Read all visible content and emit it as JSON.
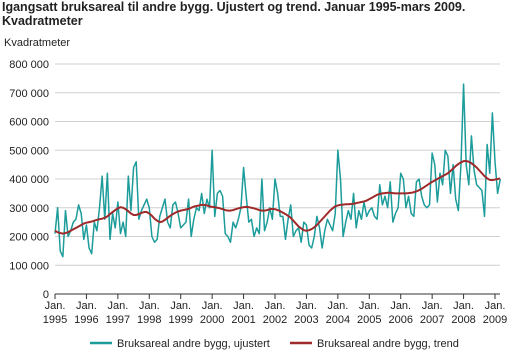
{
  "chart_data": {
    "type": "line",
    "title": "Igangsatt bruksareal til andre bygg. Ujustert og trend. Januar 1995-mars 2009. Kvadratmeter",
    "y_label": "Kvadratmeter",
    "grid": true,
    "ylim": [
      0,
      800000
    ],
    "yticks": [
      0,
      {
        "value": 100000,
        "label": "100 000"
      },
      {
        "value": 200000,
        "label": "200 000"
      },
      {
        "value": 300000,
        "label": "300 000"
      },
      {
        "value": 400000,
        "label": "400 000"
      },
      {
        "value": 500000,
        "label": "500 000"
      },
      {
        "value": 600000,
        "label": "600 000"
      },
      {
        "value": 700000,
        "label": "700 000"
      },
      {
        "value": 800000,
        "label": "800 000"
      }
    ],
    "legend": "bottom",
    "categories": [
      "Jan. 1995",
      null,
      null,
      null,
      null,
      null,
      null,
      null,
      null,
      null,
      null,
      null,
      "Jan. 1996",
      null,
      null,
      null,
      null,
      null,
      null,
      null,
      null,
      null,
      null,
      null,
      "Jan. 1997",
      null,
      null,
      null,
      null,
      null,
      null,
      null,
      null,
      null,
      null,
      null,
      "Jan. 1998",
      null,
      null,
      null,
      null,
      null,
      null,
      null,
      null,
      null,
      null,
      null,
      "Jan. 1999",
      null,
      null,
      null,
      null,
      null,
      null,
      null,
      null,
      null,
      null,
      null,
      "Jan. 2000",
      null,
      null,
      null,
      null,
      null,
      null,
      null,
      null,
      null,
      null,
      null,
      "Jan. 2001",
      null,
      null,
      null,
      null,
      null,
      null,
      null,
      null,
      null,
      null,
      null,
      "Jan. 2002",
      null,
      null,
      null,
      null,
      null,
      null,
      null,
      null,
      null,
      null,
      null,
      "Jan. 2003",
      null,
      null,
      null,
      null,
      null,
      null,
      null,
      null,
      null,
      null,
      null,
      "Jan. 2004",
      null,
      null,
      null,
      null,
      null,
      null,
      null,
      null,
      null,
      null,
      null,
      "Jan. 2005",
      null,
      null,
      null,
      null,
      null,
      null,
      null,
      null,
      null,
      null,
      null,
      "Jan. 2006",
      null,
      null,
      null,
      null,
      null,
      null,
      null,
      null,
      null,
      null,
      null,
      "Jan. 2007",
      null,
      null,
      null,
      null,
      null,
      null,
      null,
      null,
      null,
      null,
      null,
      "Jan. 2008",
      null,
      null,
      null,
      null,
      null,
      null,
      null,
      null,
      null,
      null,
      null,
      "Jan. 2009",
      null,
      null
    ],
    "series": [
      {
        "name": "Bruksareal andre bygg, ujustert",
        "color": "#1c9c9a",
        "width": 1.5,
        "values": [
          210000,
          300000,
          150000,
          130000,
          290000,
          200000,
          220000,
          250000,
          260000,
          310000,
          280000,
          190000,
          240000,
          160000,
          140000,
          250000,
          220000,
          300000,
          410000,
          260000,
          420000,
          190000,
          280000,
          230000,
          320000,
          210000,
          250000,
          200000,
          410000,
          290000,
          440000,
          460000,
          260000,
          290000,
          310000,
          330000,
          300000,
          200000,
          180000,
          190000,
          270000,
          300000,
          330000,
          250000,
          230000,
          310000,
          320000,
          280000,
          230000,
          240000,
          250000,
          330000,
          200000,
          260000,
          300000,
          290000,
          350000,
          280000,
          330000,
          300000,
          500000,
          270000,
          350000,
          360000,
          340000,
          210000,
          200000,
          180000,
          250000,
          230000,
          260000,
          300000,
          440000,
          340000,
          250000,
          260000,
          200000,
          230000,
          210000,
          400000,
          220000,
          250000,
          300000,
          260000,
          400000,
          350000,
          270000,
          270000,
          190000,
          260000,
          310000,
          200000,
          220000,
          230000,
          180000,
          250000,
          240000,
          170000,
          160000,
          200000,
          270000,
          230000,
          160000,
          220000,
          260000,
          240000,
          220000,
          280000,
          500000,
          400000,
          200000,
          250000,
          290000,
          260000,
          350000,
          230000,
          290000,
          260000,
          320000,
          270000,
          290000,
          300000,
          270000,
          260000,
          380000,
          310000,
          340000,
          300000,
          390000,
          250000,
          280000,
          300000,
          420000,
          400000,
          300000,
          340000,
          280000,
          270000,
          390000,
          400000,
          340000,
          310000,
          300000,
          310000,
          490000,
          450000,
          320000,
          420000,
          380000,
          500000,
          480000,
          350000,
          450000,
          330000,
          290000,
          450000,
          730000,
          450000,
          380000,
          550000,
          430000,
          380000,
          370000,
          360000,
          270000,
          520000,
          420000,
          630000,
          460000,
          350000,
          400000
        ]
      },
      {
        "name": "Bruksareal andre bygg, trend",
        "color": "#9e2a2b",
        "width": 2,
        "values": [
          220000,
          215000,
          212000,
          210000,
          212000,
          215000,
          220000,
          225000,
          230000,
          235000,
          240000,
          245000,
          248000,
          250000,
          252000,
          255000,
          258000,
          260000,
          262000,
          265000,
          270000,
          278000,
          285000,
          292000,
          298000,
          302000,
          300000,
          295000,
          288000,
          280000,
          275000,
          275000,
          278000,
          282000,
          285000,
          285000,
          280000,
          272000,
          262000,
          255000,
          250000,
          252000,
          258000,
          265000,
          272000,
          278000,
          283000,
          287000,
          290000,
          292000,
          294000,
          296000,
          300000,
          304000,
          306000,
          308000,
          310000,
          310000,
          308000,
          305000,
          303000,
          302000,
          300000,
          298000,
          295000,
          292000,
          290000,
          290000,
          292000,
          295000,
          298000,
          300000,
          302000,
          303000,
          302000,
          300000,
          298000,
          295000,
          292000,
          290000,
          290000,
          292000,
          295000,
          296000,
          295000,
          292000,
          288000,
          283000,
          278000,
          272000,
          265000,
          255000,
          245000,
          235000,
          228000,
          222000,
          220000,
          222000,
          226000,
          232000,
          240000,
          250000,
          260000,
          270000,
          280000,
          290000,
          298000,
          305000,
          308000,
          310000,
          311000,
          312000,
          312000,
          313000,
          314000,
          316000,
          318000,
          320000,
          322000,
          325000,
          330000,
          335000,
          340000,
          345000,
          348000,
          350000,
          351000,
          352000,
          352000,
          351000,
          350000,
          350000,
          350000,
          350000,
          350000,
          351000,
          352000,
          354000,
          357000,
          361000,
          366000,
          372000,
          378000,
          384000,
          390000,
          395000,
          400000,
          405000,
          410000,
          415000,
          420000,
          428000,
          436000,
          445000,
          452000,
          458000,
          462000,
          463000,
          460000,
          455000,
          448000,
          440000,
          430000,
          420000,
          410000,
          402000,
          397000,
          396000,
          398000,
          400000,
          402000
        ]
      }
    ]
  }
}
